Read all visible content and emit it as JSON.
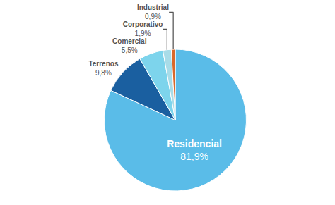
{
  "chart_data": {
    "type": "pie",
    "categories": [
      "Residencial",
      "Terrenos",
      "Comercial",
      "Corporativo",
      "Industrial"
    ],
    "values": [
      81.9,
      9.8,
      5.5,
      1.9,
      0.9
    ],
    "value_labels": [
      "81,9%",
      "9,8%",
      "5,5%",
      "1,9%",
      "0,9%"
    ],
    "colors": [
      "#5abce8",
      "#1a5fa0",
      "#7dd4ec",
      "#a8dce8",
      "#d9682a"
    ],
    "data_labels": true
  }
}
